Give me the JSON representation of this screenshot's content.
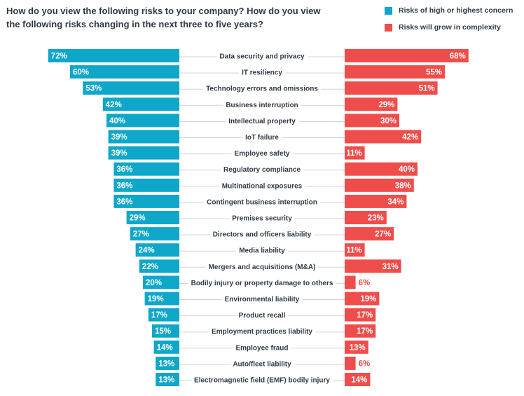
{
  "question": "How do you view the following risks to your company? How do you view the following risks changing in the next three to five years?",
  "colors": {
    "concern": "#0fa7c9",
    "complexity": "#ef4d4b",
    "label_text": "#2f3a45",
    "connector": "#cfd3d6"
  },
  "legend": {
    "items": [
      {
        "label": "Risks of high or highest concern",
        "color": "#0fa7c9"
      },
      {
        "label": "Risks will grow in complexity",
        "color": "#ef4d4b"
      }
    ]
  },
  "chart_data": {
    "type": "bar",
    "title": "",
    "xlabel": "",
    "ylabel": "",
    "xlim": [
      0,
      100
    ],
    "grid": false,
    "legend_position": "top-right",
    "value_suffix": "%",
    "categories": [
      "Data security and privacy",
      "IT resiliency",
      "Technology errors and omissions",
      "Business interruption",
      "Intellectual property",
      "IoT failure",
      "Employee safety",
      "Regulatory compliance",
      "Multinational exposures",
      "Contingent business interruption",
      "Premises security",
      "Directors and officers liability",
      "Media liability",
      "Mergers and acquisitions (M&A)",
      "Bodily injury or property damage to others",
      "Environmental liability",
      "Product recall",
      "Employment practices liability",
      "Employee fraud",
      "Auto/fleet liability",
      "Electromagnetic field (EMF) bodily injury"
    ],
    "series": [
      {
        "name": "Risks of high or highest concern",
        "values": [
          72,
          60,
          53,
          42,
          40,
          39,
          39,
          36,
          36,
          36,
          29,
          27,
          24,
          22,
          20,
          19,
          17,
          15,
          14,
          13,
          13
        ]
      },
      {
        "name": "Risks will grow in complexity",
        "values": [
          68,
          55,
          51,
          29,
          30,
          42,
          11,
          40,
          38,
          34,
          23,
          27,
          11,
          31,
          6,
          19,
          17,
          17,
          13,
          6,
          14
        ]
      }
    ]
  }
}
